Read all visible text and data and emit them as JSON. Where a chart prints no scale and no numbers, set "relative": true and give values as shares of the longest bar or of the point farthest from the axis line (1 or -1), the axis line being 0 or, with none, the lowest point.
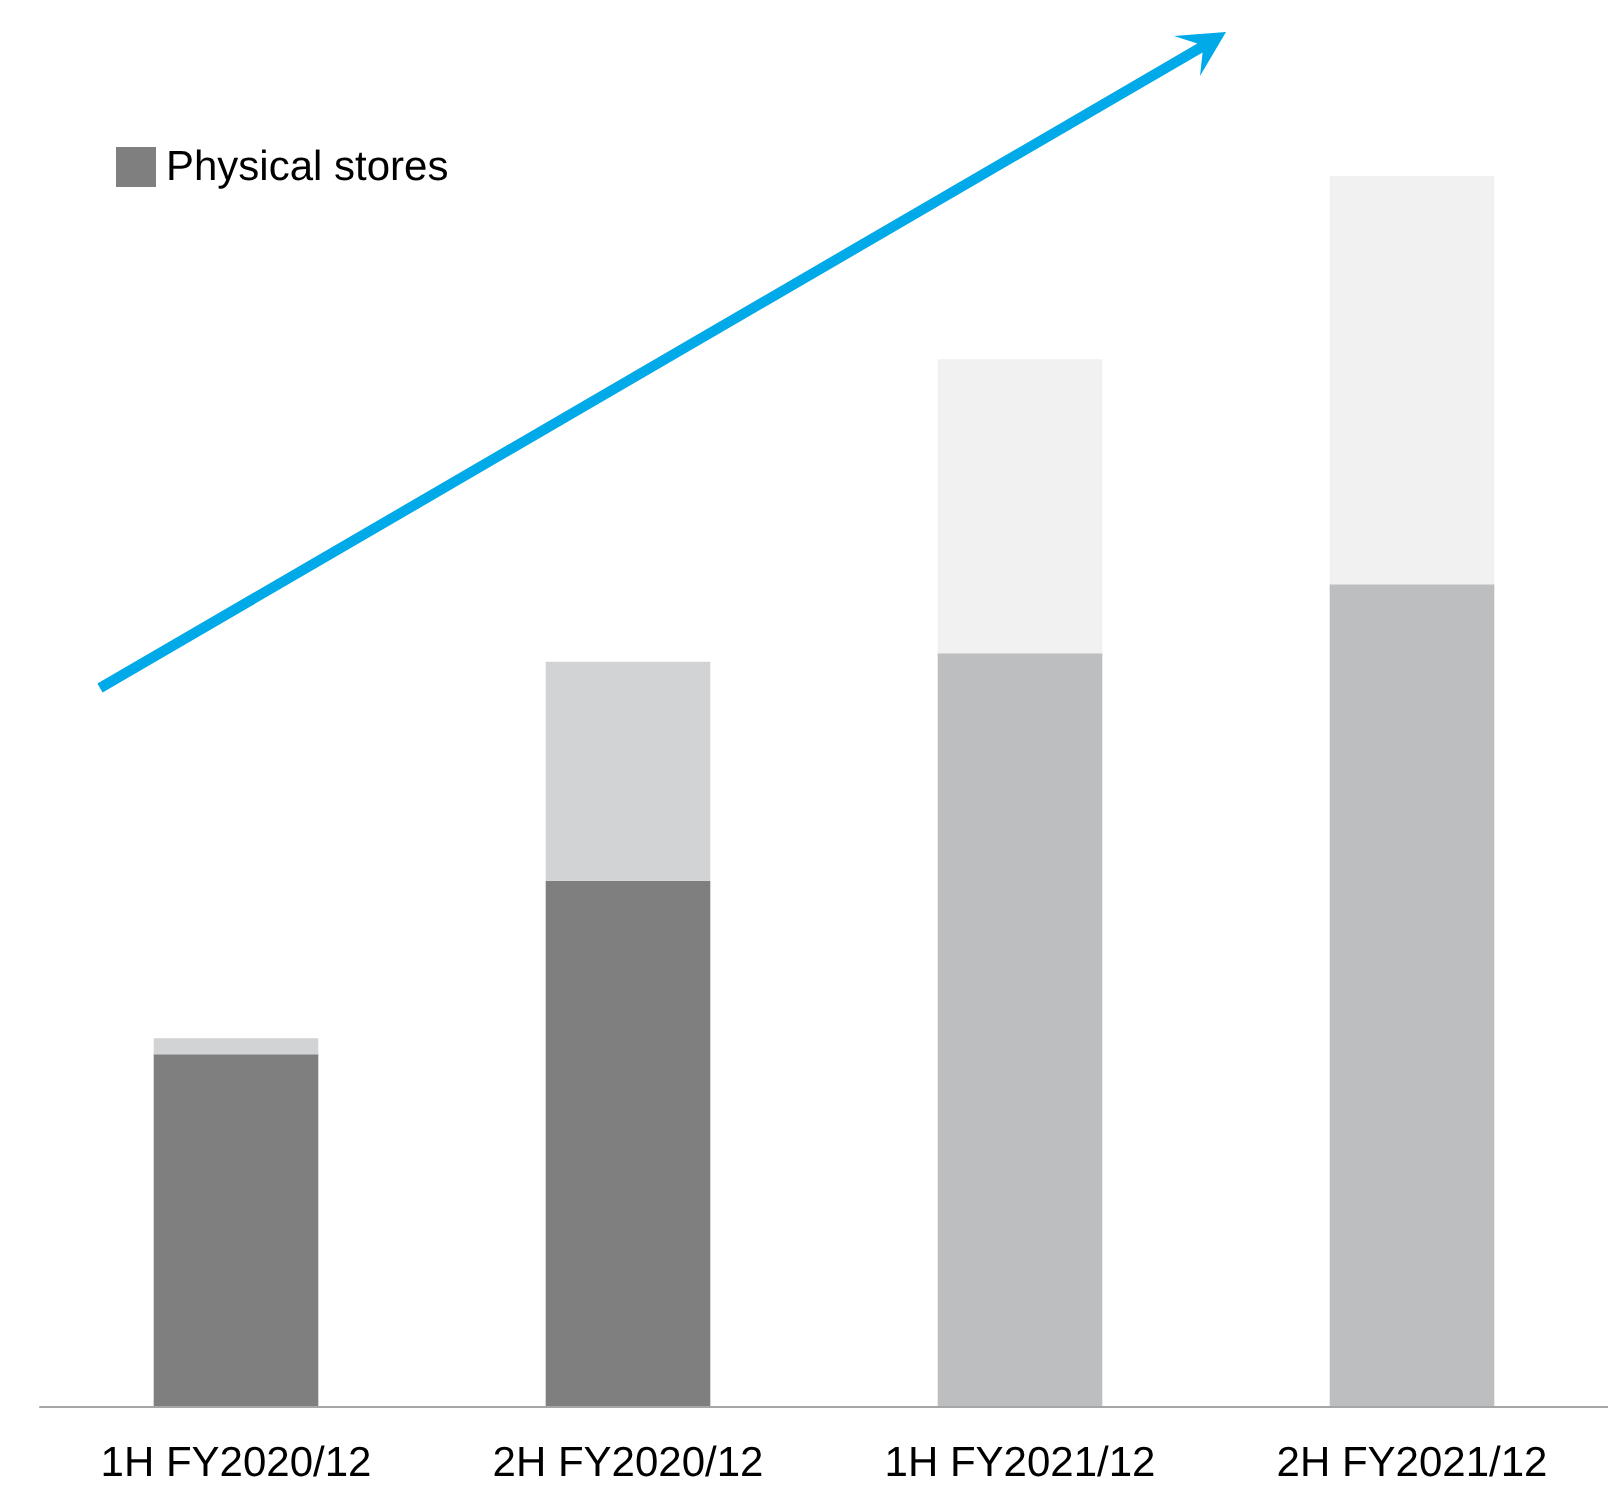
{
  "chart_data": {
    "type": "bar",
    "stacked": true,
    "relative": true,
    "legend": "top left",
    "categories": [
      "1H FY2020/12",
      "2H FY2020/12",
      "1H FY2021/12",
      "2H FY2021/12"
    ],
    "series": [
      {
        "name": "Physical stores",
        "color": "#7f7f7f",
        "colors": [
          "#7f7f7f",
          "#7f7f7f",
          "#bcbec0",
          "#bcbec0"
        ],
        "values": [
          0.286,
          0.427,
          0.612,
          0.668
        ]
      },
      {
        "color": "#d1d3d4",
        "colors": [
          "#d1d3d4",
          "#d1d3d4",
          "#f1f1f1",
          "#f1f1f1"
        ],
        "values": [
          0.013,
          0.178,
          0.239,
          0.332
        ]
      }
    ]
  }
}
